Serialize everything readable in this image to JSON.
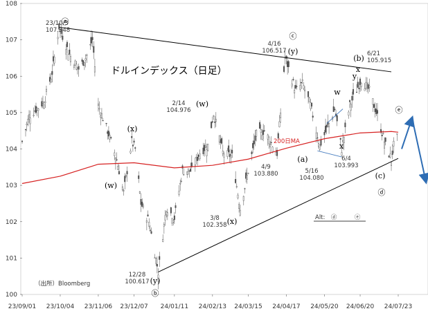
{
  "chart_data": {
    "type": "candlestick",
    "title": "ドルインデックス（日足）",
    "source": "（出所）Bloomberg",
    "ylim": [
      100,
      108
    ],
    "yticks": [
      100,
      101,
      102,
      103,
      104,
      105,
      106,
      107,
      108
    ],
    "xticks": [
      "23/09/01",
      "23/10/04",
      "23/11/06",
      "23/12/07",
      "24/01/11",
      "24/02/13",
      "24/03/15",
      "24/04/17",
      "24/05/20",
      "24/06/20",
      "24/07/23"
    ],
    "price_path": [
      {
        "date": "23/09/01",
        "value": 104.2
      },
      {
        "date": "23/09/07",
        "value": 104.9
      },
      {
        "date": "23/09/20",
        "value": 105.3
      },
      {
        "date": "23/09/27",
        "value": 106.1
      },
      {
        "date": "23/10/03",
        "value": 107.348
      },
      {
        "date": "23/10/12",
        "value": 106.6
      },
      {
        "date": "23/10/20",
        "value": 106.2
      },
      {
        "date": "23/10/26",
        "value": 106.5
      },
      {
        "date": "23/11/01",
        "value": 107.0
      },
      {
        "date": "23/11/06",
        "value": 105.2
      },
      {
        "date": "23/11/14",
        "value": 104.5
      },
      {
        "date": "23/11/22",
        "value": 103.7
      },
      {
        "date": "23/11/28",
        "value": 102.8
      },
      {
        "date": "23/12/05",
        "value": 104.2
      },
      {
        "date": "23/12/08",
        "value": 104.0
      },
      {
        "date": "23/12/13",
        "value": 102.5
      },
      {
        "date": "23/12/20",
        "value": 102.0
      },
      {
        "date": "23/12/28",
        "value": 100.617
      },
      {
        "date": "24/01/04",
        "value": 102.4
      },
      {
        "date": "24/01/11",
        "value": 102.1
      },
      {
        "date": "24/01/18",
        "value": 103.4
      },
      {
        "date": "24/01/26",
        "value": 103.4
      },
      {
        "date": "24/02/02",
        "value": 103.9
      },
      {
        "date": "24/02/09",
        "value": 104.1
      },
      {
        "date": "24/02/14",
        "value": 104.976
      },
      {
        "date": "24/02/22",
        "value": 103.9
      },
      {
        "date": "24/03/01",
        "value": 103.8
      },
      {
        "date": "24/03/08",
        "value": 102.358
      },
      {
        "date": "24/03/15",
        "value": 103.4
      },
      {
        "date": "24/03/22",
        "value": 104.4
      },
      {
        "date": "24/03/29",
        "value": 104.5
      },
      {
        "date": "24/04/09",
        "value": 103.88
      },
      {
        "date": "24/04/16",
        "value": 106.517
      },
      {
        "date": "24/04/25",
        "value": 105.6
      },
      {
        "date": "24/05/01",
        "value": 105.8
      },
      {
        "date": "24/05/08",
        "value": 105.2
      },
      {
        "date": "24/05/16",
        "value": 104.08
      },
      {
        "date": "24/05/24",
        "value": 104.7
      },
      {
        "date": "24/05/29",
        "value": 105.1
      },
      {
        "date": "24/06/04",
        "value": 103.993
      },
      {
        "date": "24/06/11",
        "value": 105.2
      },
      {
        "date": "24/06/21",
        "value": 105.915
      },
      {
        "date": "24/06/28",
        "value": 105.6
      },
      {
        "date": "24/07/05",
        "value": 104.9
      },
      {
        "date": "24/07/12",
        "value": 104.1
      },
      {
        "date": "24/07/17",
        "value": 103.7
      },
      {
        "date": "24/07/19",
        "value": 104.1
      },
      {
        "date": "24/07/22",
        "value": 104.3
      }
    ],
    "ma200": {
      "name": "200日MA",
      "color": "#d62020",
      "points": [
        {
          "date": "23/09/01",
          "value": 103.05
        },
        {
          "date": "23/10/04",
          "value": 103.25
        },
        {
          "date": "23/11/06",
          "value": 103.58
        },
        {
          "date": "23/12/07",
          "value": 103.62
        },
        {
          "date": "24/01/11",
          "value": 103.48
        },
        {
          "date": "24/02/13",
          "value": 103.55
        },
        {
          "date": "24/03/15",
          "value": 103.72
        },
        {
          "date": "24/04/17",
          "value": 104.02
        },
        {
          "date": "24/05/20",
          "value": 104.28
        },
        {
          "date": "24/06/20",
          "value": 104.44
        },
        {
          "date": "24/07/17",
          "value": 104.48
        },
        {
          "date": "24/07/23",
          "value": 104.46
        }
      ]
    },
    "trendlines": [
      {
        "name": "upper",
        "from": {
          "date": "23/10/03",
          "value": 107.348
        },
        "to": {
          "date": "24/07/17",
          "value": 106.12
        }
      },
      {
        "name": "lower",
        "from": {
          "date": "23/12/28",
          "value": 100.617
        },
        "to": {
          "date": "24/07/23",
          "value": 103.74
        }
      }
    ],
    "triangle_lines": [
      {
        "from": {
          "date": "24/05/22",
          "value": 104.7
        },
        "to": {
          "date": "24/06/05",
          "value": 105.1
        }
      },
      {
        "from": {
          "date": "24/05/14",
          "value": 103.95
        },
        "to": {
          "date": "24/06/04",
          "value": 103.78
        }
      }
    ],
    "annotations": [
      {
        "date_label": "23/10/3",
        "value_label": "107.348",
        "wave": "ⓐ"
      },
      {
        "date_label": "12/28",
        "value_label": "100.617",
        "wave": "ⓑ"
      },
      {
        "date_label": "4/16",
        "value_label": "106.517",
        "wave": "ⓒ"
      },
      {
        "date_label": "2/14",
        "value_label": "104.976"
      },
      {
        "date_label": "3/8",
        "value_label": "102.358"
      },
      {
        "date_label": "4/9",
        "value_label": "103.880"
      },
      {
        "date_label": "5/16",
        "value_label": "104.080"
      },
      {
        "date_label": "6/4",
        "value_label": "103.993"
      },
      {
        "date_label": "6/21",
        "value_label": "105.915"
      }
    ],
    "wave_labels": [
      "(w)",
      "(x)",
      "(y)",
      "(w)",
      "(x)",
      "(y)",
      "(a)",
      "(b)",
      "(c)",
      "w",
      "x",
      "y",
      "x",
      "ⓓ",
      "ⓔ"
    ],
    "alt_text": "Alt:　ⓓ　　　ⓔ",
    "grid": false,
    "forecast_arrows": [
      {
        "color": "#2e6db4",
        "from": {
          "date": "24/07/26",
          "value": 104.0
        },
        "to": {
          "date": "24/08/04",
          "value": 104.85
        }
      },
      {
        "color": "#2e6db4",
        "from": {
          "date": "24/08/04",
          "value": 104.85
        },
        "to": {
          "date": "24/08/16",
          "value": 103.1
        }
      }
    ]
  }
}
